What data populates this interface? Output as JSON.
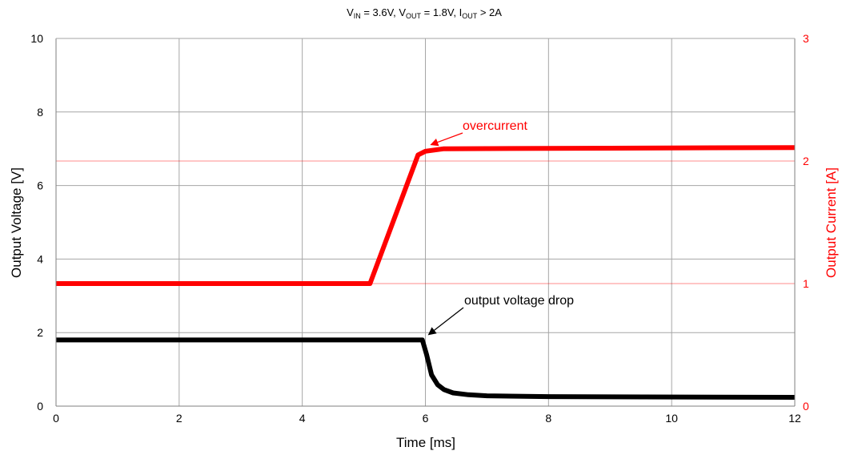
{
  "chart_data": {
    "type": "line",
    "title": {
      "parts": [
        {
          "t": "V"
        },
        {
          "t": "IN",
          "sub": true
        },
        {
          "t": " = 3.6V, V"
        },
        {
          "t": "OUT",
          "sub": true
        },
        {
          "t": " = 1.8V, I"
        },
        {
          "t": "OUT",
          "sub": true
        },
        {
          "t": " > 2A"
        }
      ]
    },
    "xlabel": "Time  [ms]",
    "ylabel": "Output Voltage  [V]",
    "y2label": "Output Current  [A]",
    "xlim": [
      0,
      12
    ],
    "ylim": [
      0,
      10
    ],
    "y2lim": [
      0,
      3
    ],
    "xticks": [
      "0",
      "2",
      "4",
      "6",
      "8",
      "10",
      "12"
    ],
    "yticks": [
      "0",
      "2",
      "4",
      "6",
      "8",
      "10"
    ],
    "y2ticks": [
      "0",
      "1",
      "2",
      "3"
    ],
    "grid": true,
    "reference_lines_y2": [
      1,
      2
    ],
    "series": [
      {
        "axis": "y2",
        "color": "#ff0000",
        "points": [
          [
            0,
            1.0
          ],
          [
            5.1,
            1.0
          ],
          [
            5.88,
            2.05
          ],
          [
            6.0,
            2.08
          ],
          [
            6.3,
            2.1
          ],
          [
            12,
            2.11
          ]
        ]
      },
      {
        "axis": "y",
        "color": "#000000",
        "points": [
          [
            0,
            1.8
          ],
          [
            5.95,
            1.8
          ],
          [
            6.02,
            1.4
          ],
          [
            6.1,
            0.85
          ],
          [
            6.2,
            0.58
          ],
          [
            6.3,
            0.45
          ],
          [
            6.45,
            0.36
          ],
          [
            6.7,
            0.31
          ],
          [
            7.0,
            0.28
          ],
          [
            8.0,
            0.26
          ],
          [
            12,
            0.24
          ]
        ]
      }
    ],
    "annotations": [
      {
        "text": "overcurrent",
        "color": "#ff0000",
        "arrow_to": [
          6.05,
          2.1
        ],
        "axis": "y2"
      },
      {
        "text": "output voltage drop",
        "color": "#000000",
        "arrow_to": [
          6.0,
          1.9
        ],
        "axis": "y"
      }
    ]
  }
}
